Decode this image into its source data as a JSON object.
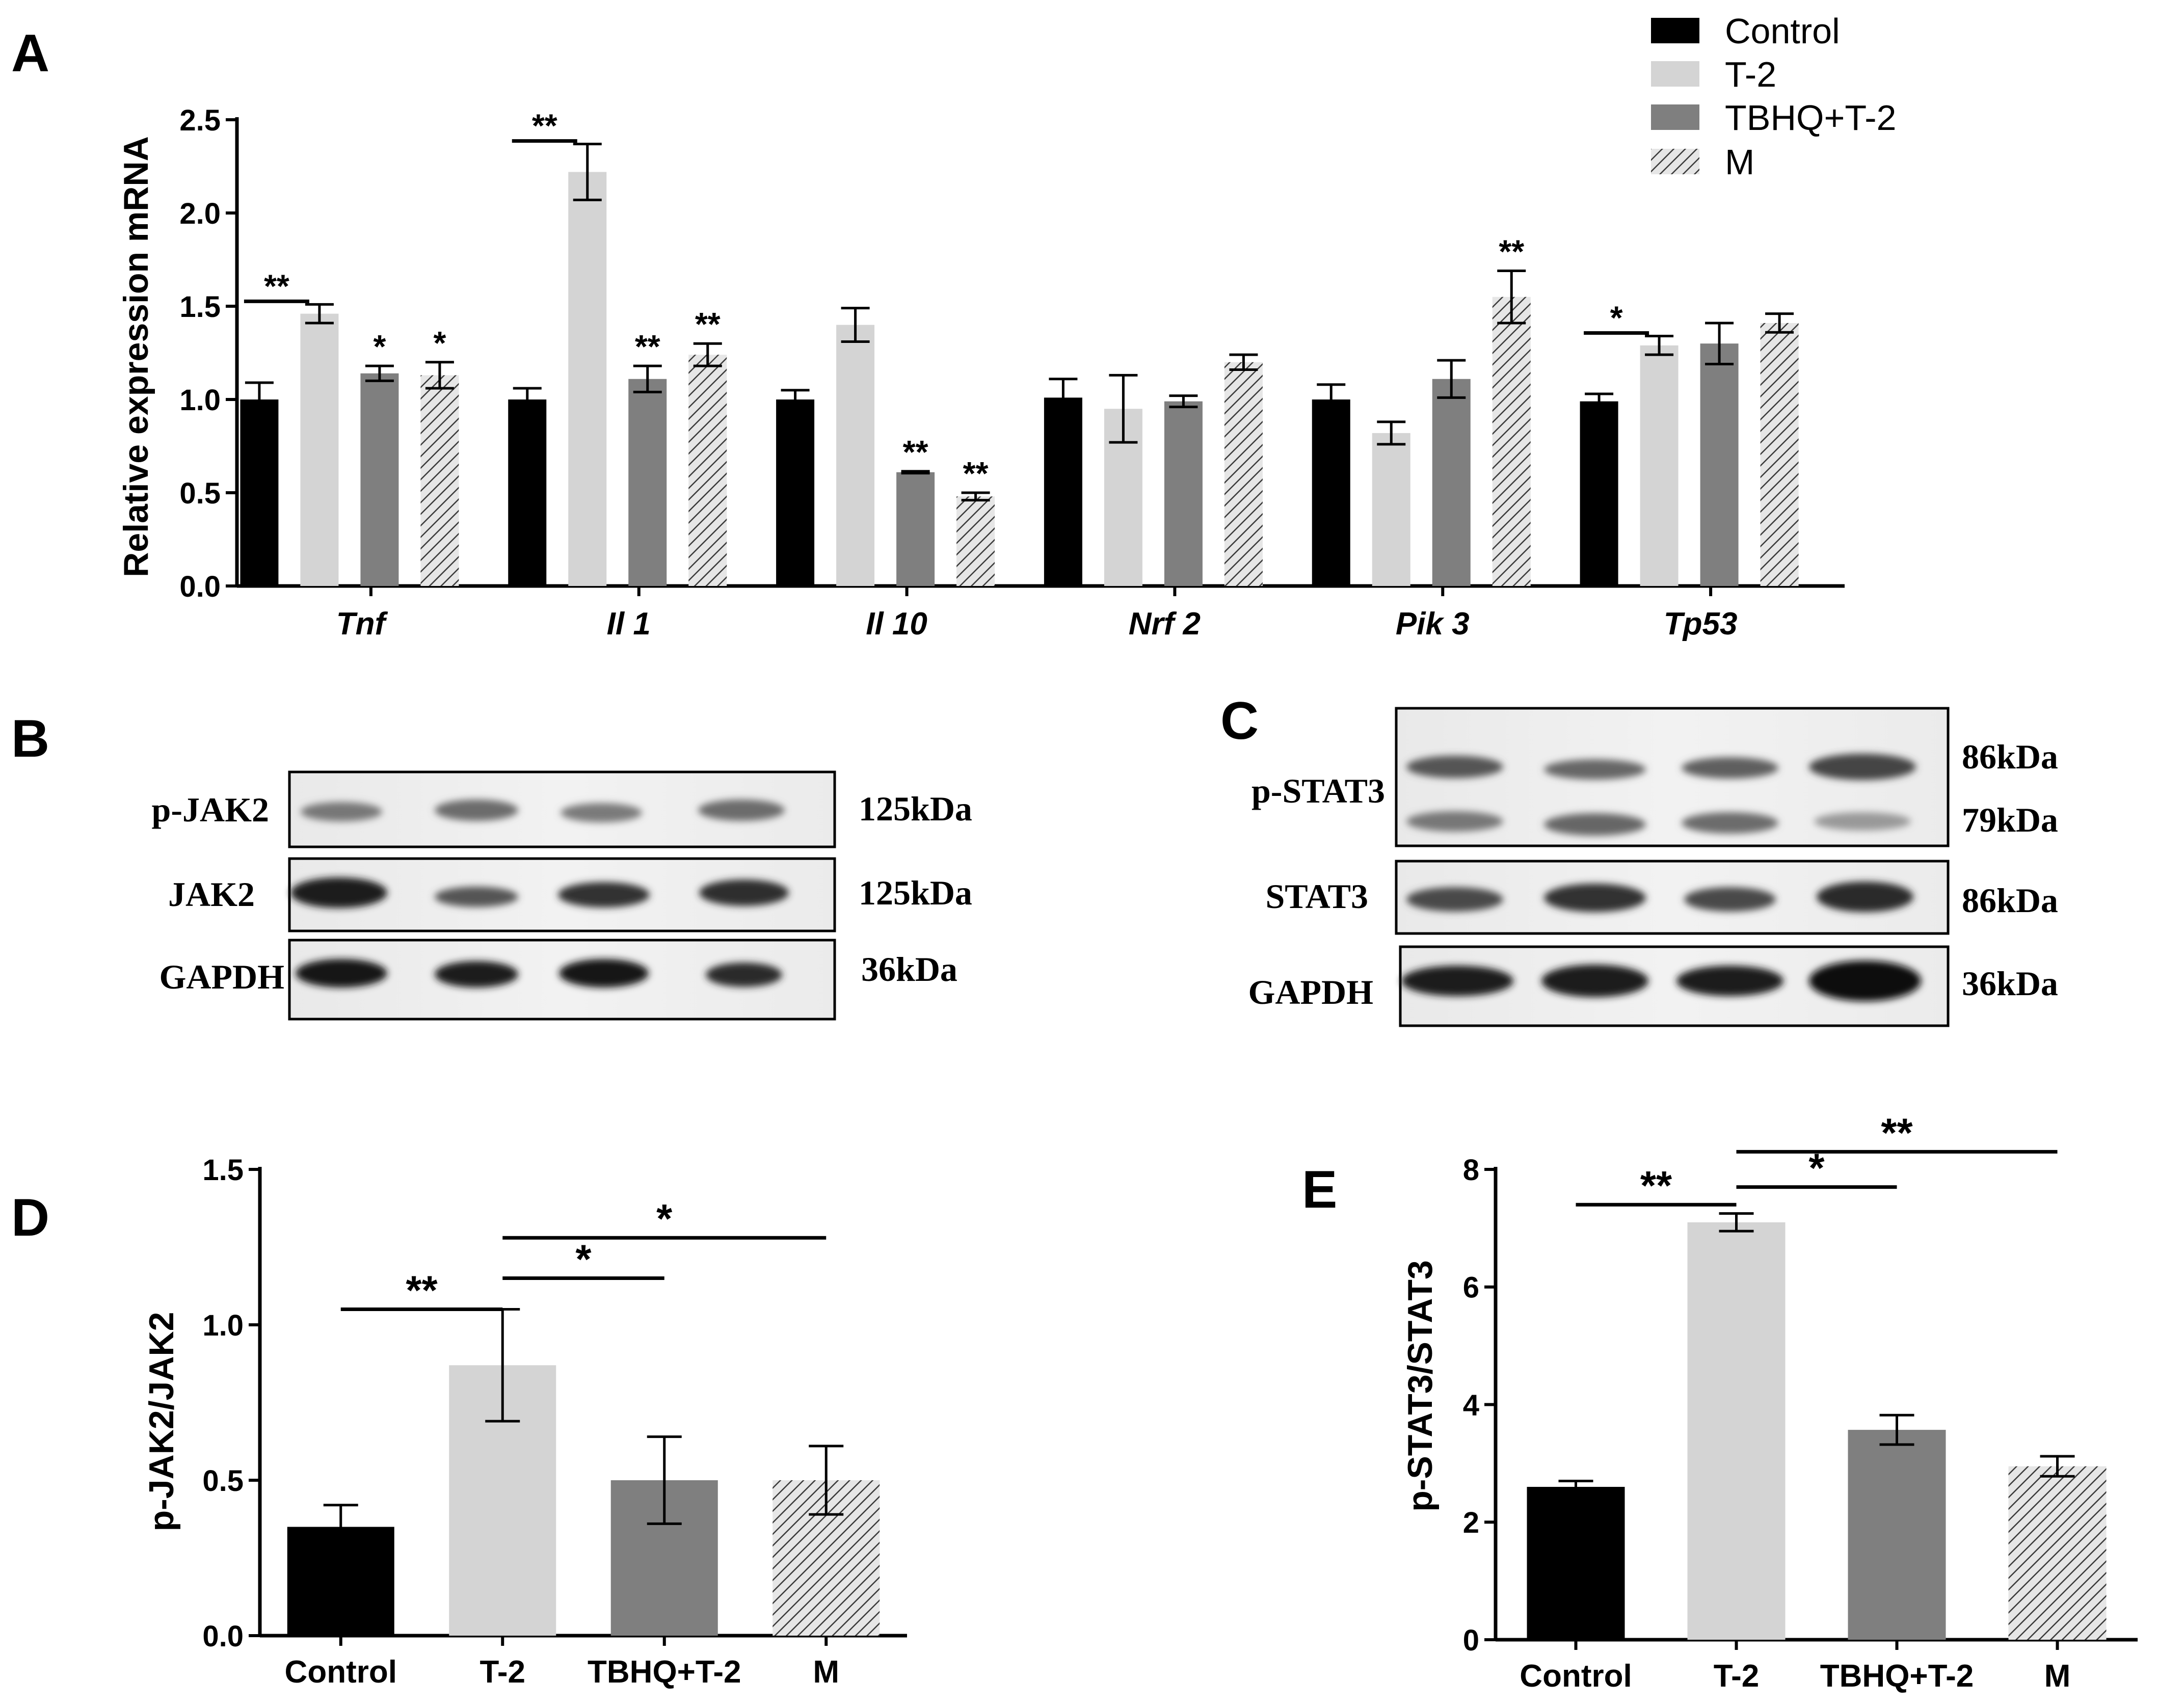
{
  "colors": {
    "control": "#000000",
    "t2": "#d4d4d4",
    "tbhq": "#7f7f7f",
    "m": "#e6e6e6",
    "m_hatch": "#3a3a3a",
    "axis": "#000000"
  },
  "legend": [
    "Control",
    "T-2",
    "TBHQ+T-2",
    "M"
  ],
  "panels": {
    "A": "A",
    "B": "B",
    "C": "C",
    "D": "D",
    "E": "E"
  },
  "blot_b": {
    "rows": [
      {
        "label": "p-JAK2",
        "mw": "125kDa"
      },
      {
        "label": "JAK2",
        "mw": "125kDa"
      },
      {
        "label": "GAPDH",
        "mw": "36kDa"
      }
    ]
  },
  "blot_c": {
    "rows": [
      {
        "label": "p-STAT3",
        "mw": "86kDa",
        "mw2": "79kDa"
      },
      {
        "label": "STAT3",
        "mw": "86kDa"
      },
      {
        "label": "GAPDH",
        "mw": "36kDa"
      }
    ]
  },
  "chart_data": [
    {
      "panel": "A",
      "type": "bar",
      "ylabel": "Relative expression mRNA",
      "ylim": [
        0,
        2.5
      ],
      "yticks": [
        "0.0",
        "0.5",
        "1.0",
        "1.5",
        "2.0",
        "2.5"
      ],
      "categories": [
        "Tnf",
        "Il 1",
        "Il 10",
        "Nrf 2",
        "Pik 3",
        "Tp53"
      ],
      "series": [
        {
          "name": "Control",
          "values": [
            1.0,
            1.0,
            1.0,
            1.01,
            1.0,
            0.99
          ],
          "errors": [
            0.09,
            0.06,
            0.05,
            0.1,
            0.08,
            0.04
          ],
          "sig": [
            "",
            "",
            "",
            "",
            "",
            ""
          ]
        },
        {
          "name": "T-2",
          "values": [
            1.46,
            2.22,
            1.4,
            0.95,
            0.82,
            1.29
          ],
          "errors": [
            0.05,
            0.15,
            0.09,
            0.18,
            0.06,
            0.05
          ],
          "sig": [
            "",
            "",
            "",
            "",
            "",
            ""
          ]
        },
        {
          "name": "TBHQ+T-2",
          "values": [
            1.14,
            1.11,
            0.61,
            0.99,
            1.11,
            1.3
          ],
          "errors": [
            0.04,
            0.07,
            0.005,
            0.03,
            0.1,
            0.11
          ],
          "sig": [
            "*",
            "**",
            "**",
            "",
            "",
            ""
          ]
        },
        {
          "name": "M",
          "values": [
            1.13,
            1.24,
            0.48,
            1.2,
            1.55,
            1.41
          ],
          "errors": [
            0.07,
            0.06,
            0.02,
            0.04,
            0.14,
            0.05
          ],
          "sig": [
            "*",
            "**",
            "**",
            "",
            "**",
            ""
          ]
        }
      ],
      "brackets": [
        {
          "category": 0,
          "text": "**"
        },
        {
          "category": 1,
          "text": "**"
        },
        {
          "category": 5,
          "text": "*"
        }
      ]
    },
    {
      "panel": "D",
      "type": "bar",
      "ylabel": "p-JAK2/JAK2",
      "ylim": [
        0,
        1.5
      ],
      "yticks": [
        "0.0",
        "0.5",
        "1.0",
        "1.5"
      ],
      "categories": [
        "Control",
        "T-2",
        "TBHQ+T-2",
        "M"
      ],
      "values": [
        0.35,
        0.87,
        0.5,
        0.5
      ],
      "errors": [
        0.07,
        0.18,
        0.14,
        0.11
      ],
      "brackets": [
        {
          "from": 0,
          "to": 1,
          "level": 1.05,
          "text": "**"
        },
        {
          "from": 1,
          "to": 2,
          "level": 1.15,
          "text": "*"
        },
        {
          "from": 1,
          "to": 3,
          "level": 1.28,
          "text": "*"
        }
      ]
    },
    {
      "panel": "E",
      "type": "bar",
      "ylabel": "p-STAT3/STAT3",
      "ylim": [
        0,
        8
      ],
      "yticks": [
        "0",
        "2",
        "4",
        "6",
        "8"
      ],
      "categories": [
        "Control",
        "T-2",
        "TBHQ+T-2",
        "M"
      ],
      "values": [
        2.6,
        7.1,
        3.57,
        2.95
      ],
      "errors": [
        0.1,
        0.15,
        0.25,
        0.17
      ],
      "brackets": [
        {
          "from": 0,
          "to": 1,
          "level": 7.4,
          "text": "**"
        },
        {
          "from": 1,
          "to": 2,
          "level": 7.7,
          "text": "*"
        },
        {
          "from": 1,
          "to": 3,
          "level": 8.3,
          "text": "**"
        }
      ]
    }
  ]
}
